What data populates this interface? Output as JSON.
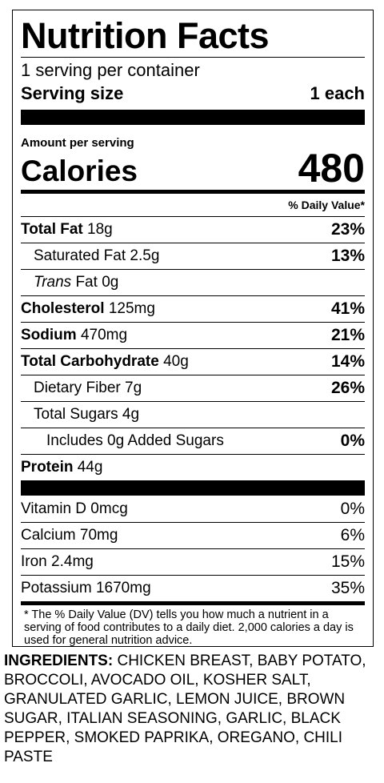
{
  "label": {
    "title": "Nutrition Facts",
    "servings_per_container": "1 serving per container",
    "serving_size_label": "Serving size",
    "serving_size_value": "1 each",
    "amount_per_serving": "Amount per serving",
    "calories_label": "Calories",
    "calories_value": "480",
    "dv_header": "% Daily Value*",
    "nutrients": [
      {
        "name": "Total Fat",
        "amount": "18g",
        "dv": "23%"
      },
      {
        "name": "Saturated Fat",
        "amount": "2.5g",
        "dv": "13%"
      },
      {
        "name": "Trans",
        "name_rest": "Fat",
        "amount": "0g",
        "dv": ""
      },
      {
        "name": "Cholesterol",
        "amount": "125mg",
        "dv": "41%"
      },
      {
        "name": "Sodium",
        "amount": "470mg",
        "dv": "21%"
      },
      {
        "name": "Total Carbohydrate",
        "amount": "40g",
        "dv": "14%"
      },
      {
        "name": "Dietary Fiber",
        "amount": "7g",
        "dv": "26%"
      },
      {
        "name": "Total Sugars",
        "amount": "4g",
        "dv": ""
      },
      {
        "name": "Includes 0g Added Sugars",
        "amount": "",
        "dv": "0%"
      },
      {
        "name": "Protein",
        "amount": "44g",
        "dv": ""
      }
    ],
    "vitamins": [
      {
        "name": "Vitamin D",
        "amount": "0mcg",
        "dv": "0%"
      },
      {
        "name": "Calcium",
        "amount": "70mg",
        "dv": "6%"
      },
      {
        "name": "Iron",
        "amount": "2.4mg",
        "dv": "15%"
      },
      {
        "name": "Potassium",
        "amount": "1670mg",
        "dv": "35%"
      }
    ],
    "footnote": "* The % Daily Value (DV) tells you how much a nutrient in a serving of food contributes to a daily diet. 2,000 calories a day is used for general nutrition advice."
  },
  "ingredients": {
    "heading": "INGREDIENTS:",
    "text": "CHICKEN BREAST, BABY POTATO, BROCCOLI, AVOCADO OIL, KOSHER SALT, GRANULATED GARLIC, LEMON JUICE, BROWN SUGAR, ITALIAN SEASONING, GARLIC, BLACK PEPPER, SMOKED PAPRIKA, OREGANO, CHILI PASTE"
  }
}
